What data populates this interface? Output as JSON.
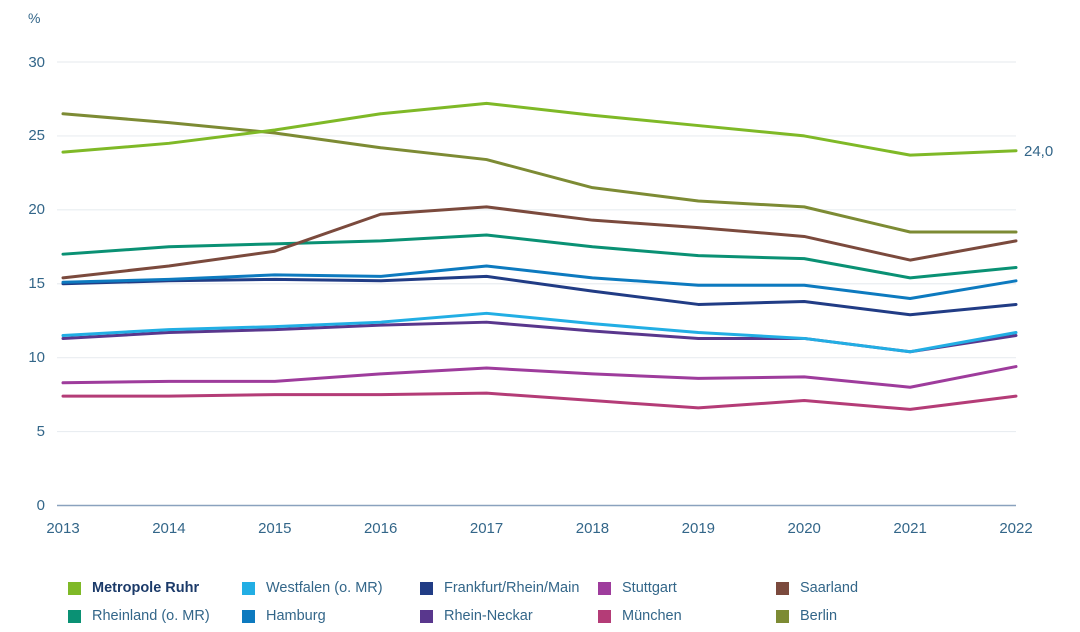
{
  "chart_data": {
    "type": "line",
    "unit_label": "%",
    "x": [
      "2013",
      "2014",
      "2015",
      "2016",
      "2017",
      "2018",
      "2019",
      "2020",
      "2021",
      "2022"
    ],
    "yticks": [
      0,
      5,
      10,
      15,
      20,
      25,
      30
    ],
    "ylim": [
      0,
      30
    ],
    "grid": true,
    "legend_position": "bottom",
    "series": [
      {
        "name": "Metropole Ruhr",
        "color": "#7fb927",
        "bold": true,
        "values": [
          23.9,
          24.5,
          25.4,
          26.5,
          27.2,
          26.4,
          25.7,
          25.0,
          23.7,
          24.0
        ]
      },
      {
        "name": "Westfalen (o. MR)",
        "color": "#22aee4",
        "bold": false,
        "values": [
          11.5,
          11.9,
          12.1,
          12.4,
          13.0,
          12.3,
          11.7,
          11.3,
          10.4,
          11.7
        ]
      },
      {
        "name": "Frankfurt/Rhein/Main",
        "color": "#213c85",
        "bold": false,
        "values": [
          15.0,
          15.2,
          15.3,
          15.2,
          15.5,
          14.5,
          13.6,
          13.8,
          12.9,
          13.6
        ]
      },
      {
        "name": "Stuttgart",
        "color": "#9e3c9c",
        "bold": false,
        "values": [
          8.3,
          8.4,
          8.4,
          8.9,
          9.3,
          8.9,
          8.6,
          8.7,
          8.0,
          9.4
        ]
      },
      {
        "name": "Saarland",
        "color": "#7b4a3d",
        "bold": false,
        "values": [
          15.4,
          16.2,
          17.2,
          19.7,
          20.2,
          19.3,
          18.8,
          18.2,
          16.6,
          17.9
        ]
      },
      {
        "name": "Rheinland (o. MR)",
        "color": "#0a9174",
        "bold": false,
        "values": [
          17.0,
          17.5,
          17.7,
          17.9,
          18.3,
          17.5,
          16.9,
          16.7,
          15.4,
          16.1
        ]
      },
      {
        "name": "Hamburg",
        "color": "#0d7abf",
        "bold": false,
        "values": [
          15.1,
          15.3,
          15.6,
          15.5,
          16.2,
          15.4,
          14.9,
          14.9,
          14.0,
          15.2
        ]
      },
      {
        "name": "Rhein-Neckar",
        "color": "#59378d",
        "bold": false,
        "values": [
          11.3,
          11.7,
          11.9,
          12.2,
          12.4,
          11.8,
          11.3,
          11.3,
          10.4,
          11.5
        ]
      },
      {
        "name": "München",
        "color": "#b43c77",
        "bold": false,
        "values": [
          7.4,
          7.4,
          7.5,
          7.5,
          7.6,
          7.1,
          6.6,
          7.1,
          6.5,
          7.4
        ]
      },
      {
        "name": "Berlin",
        "color": "#7d8b34",
        "bold": false,
        "values": [
          26.5,
          25.9,
          25.2,
          24.2,
          23.4,
          21.5,
          20.6,
          20.2,
          18.5,
          18.5
        ]
      }
    ],
    "annotation": {
      "series": "Metropole Ruhr",
      "x": "2022",
      "label": "24,0"
    },
    "colors": {
      "grid": "#e9edf1",
      "zero_line": "#8aa2be",
      "axis_text": "#336689"
    }
  }
}
